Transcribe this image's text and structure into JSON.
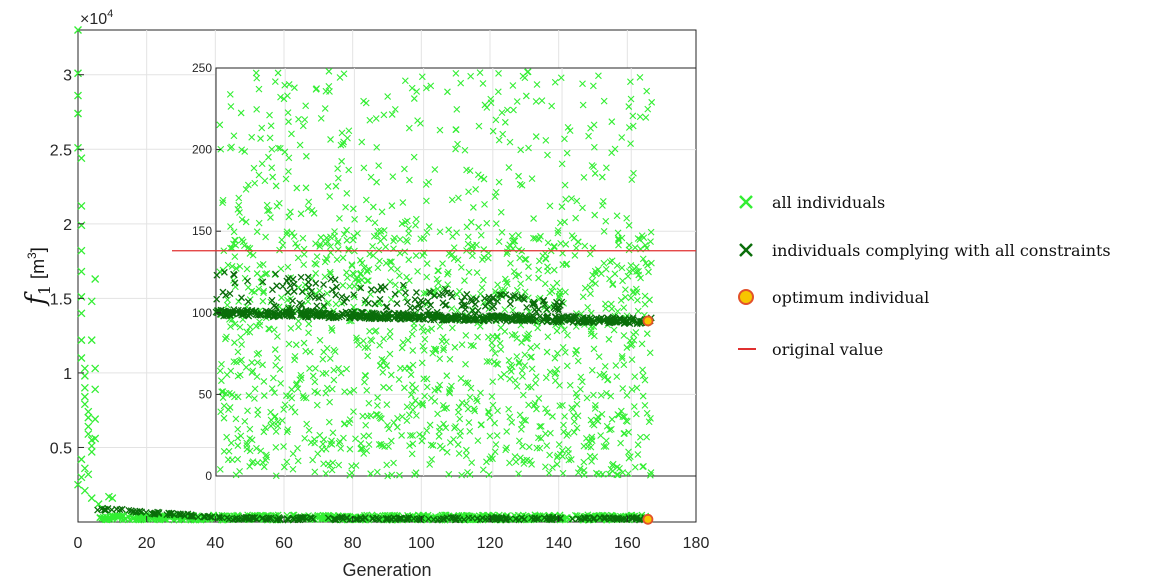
{
  "chart_data": {
    "type": "scatter",
    "xlabel": "Generation",
    "ylabel": {
      "symbol": "f",
      "subscript": "1",
      "unit_open": "[m",
      "unit_power": "3",
      "unit_close": "]"
    },
    "y_multiplier": {
      "base": "×10",
      "exponent": "4"
    },
    "xlim": [
      0,
      180
    ],
    "ylim": [
      0,
      33000
    ],
    "x_ticks": [
      "0",
      "20",
      "40",
      "60",
      "80",
      "100",
      "120",
      "140",
      "160",
      "180"
    ],
    "y_ticks": [
      "0.5",
      "1",
      "1.5",
      "2",
      "2.5",
      "3"
    ],
    "y_tick_values": [
      5000,
      10000,
      15000,
      20000,
      25000,
      30000
    ],
    "grid": true,
    "legend_position": "right",
    "series": [
      {
        "name": "all individuals",
        "marker": "x",
        "color": "#33ee33",
        "early_points": [
          [
            0,
            33000
          ],
          [
            0,
            30100
          ],
          [
            0,
            28600
          ],
          [
            0,
            27400
          ],
          [
            0,
            25100
          ],
          [
            1,
            24400
          ],
          [
            1,
            21200
          ],
          [
            1,
            19900
          ],
          [
            1,
            18200
          ],
          [
            1,
            16800
          ],
          [
            1,
            15100
          ],
          [
            1,
            14000
          ],
          [
            1,
            12200
          ],
          [
            1,
            11000
          ],
          [
            2,
            10300
          ],
          [
            2,
            9800
          ],
          [
            2,
            9000
          ],
          [
            2,
            8400
          ],
          [
            2,
            7900
          ],
          [
            3,
            7400
          ],
          [
            3,
            7000
          ],
          [
            3,
            6400
          ],
          [
            3,
            5900
          ],
          [
            4,
            5500
          ],
          [
            4,
            5100
          ],
          [
            4,
            4700
          ],
          [
            1,
            4200
          ],
          [
            2,
            3600
          ],
          [
            1,
            3000
          ],
          [
            0,
            2500
          ],
          [
            5,
            16300
          ],
          [
            4,
            14800
          ],
          [
            4,
            12200
          ],
          [
            5,
            10300
          ],
          [
            5,
            8900
          ],
          [
            5,
            6900
          ],
          [
            5,
            5600
          ],
          [
            3,
            3200
          ],
          [
            2,
            2100
          ],
          [
            4,
            1600
          ],
          [
            6,
            1200
          ],
          [
            9,
            1700
          ],
          [
            10,
            1600
          ],
          [
            7,
            900
          ],
          [
            8,
            800
          ]
        ],
        "late_band": {
          "x": [
            6,
            166
          ],
          "y_center": 300,
          "spread": 180
        }
      },
      {
        "name": "individuals complying with all constraints",
        "marker": "x",
        "color": "#0a6e0a",
        "band": {
          "x": [
            5,
            166
          ],
          "y_start": 900,
          "y_end": 230
        }
      },
      {
        "name": "optimum individual",
        "marker": "o",
        "color": "#f7c600",
        "edge": "#e2522a",
        "points": [
          [
            166,
            95
          ]
        ]
      },
      {
        "name": "original value",
        "marker": "line",
        "color": "#e03030",
        "value": 138
      }
    ],
    "inset": {
      "xlim": [
        40,
        166
      ],
      "ylim": [
        0,
        250
      ],
      "y_ticks": [
        "0",
        "50",
        "100",
        "150",
        "200",
        "250"
      ],
      "y_tick_values": [
        0,
        50,
        100,
        150,
        200,
        250
      ],
      "original_value": 138,
      "optimum": [
        166,
        95
      ],
      "all_individuals_range": [
        0,
        250
      ],
      "complying_start": 100,
      "complying_end": 95,
      "complying_upper_start": 128
    }
  }
}
